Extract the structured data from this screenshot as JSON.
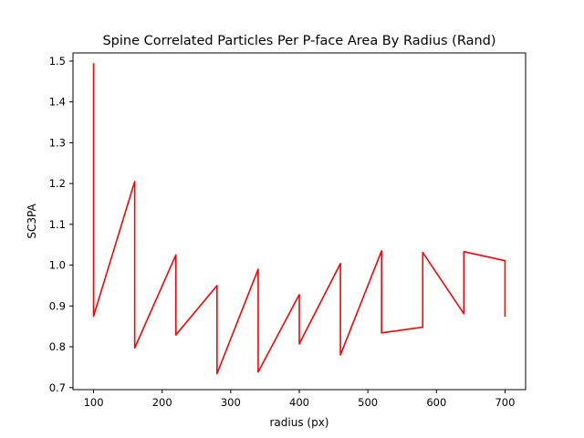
{
  "chart_data": {
    "type": "line",
    "title": "Spine Correlated Particles Per P-face Area By Radius (Rand)",
    "xlabel": "radius (px)",
    "ylabel": "SC3PA",
    "xlim": [
      70,
      730
    ],
    "ylim": [
      0.695,
      1.52
    ],
    "xticks": [
      100,
      200,
      300,
      400,
      500,
      600,
      700
    ],
    "yticks": [
      0.7,
      0.8,
      0.9,
      1.0,
      1.1,
      1.2,
      1.3,
      1.4,
      1.5
    ],
    "xtick_labels": [
      "100",
      "200",
      "300",
      "400",
      "500",
      "600",
      "700"
    ],
    "ytick_labels": [
      "0.7",
      "0.8",
      "0.9",
      "1.0",
      "1.1",
      "1.2",
      "1.3",
      "1.4",
      "1.5"
    ],
    "grid": false,
    "legend": false,
    "series": [
      {
        "color": "#ff0000",
        "x": [
          100,
          100,
          160,
          160,
          220,
          220,
          280,
          280,
          340,
          340,
          400,
          400,
          460,
          460,
          520,
          520,
          580,
          580,
          640,
          640,
          700,
          700
        ],
        "y": [
          1.495,
          0.875,
          1.205,
          0.797,
          1.025,
          0.829,
          0.95,
          0.734,
          0.99,
          0.738,
          0.928,
          0.807,
          1.004,
          0.78,
          1.035,
          0.834,
          0.848,
          1.031,
          0.881,
          1.033,
          1.011,
          0.874
        ]
      }
    ]
  }
}
